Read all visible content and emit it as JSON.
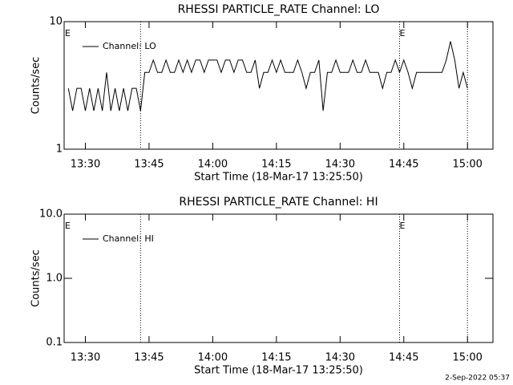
{
  "chart_data": [
    {
      "type": "line",
      "title": "RHESSI PARTICLE_RATE Channel: LO",
      "y_label": "Counts/sec",
      "x_label": "Start Time (18-Mar-17 13:25:50)",
      "log_y": true,
      "ylim": [
        1,
        10
      ],
      "yticks": [
        1,
        10
      ],
      "xlim": [
        "13:25",
        "15:06"
      ],
      "xticks": [
        "13:30",
        "13:45",
        "14:00",
        "14:15",
        "14:30",
        "14:45",
        "15:00"
      ],
      "vlines": [
        "13:43",
        "14:44",
        "15:00"
      ],
      "annotations": [
        {
          "text": "E",
          "x": "13:25"
        },
        {
          "text": "E",
          "x": "14:44"
        }
      ],
      "legend": "upper left",
      "x": [
        "13:26",
        "13:27",
        "13:28",
        "13:29",
        "13:30",
        "13:31",
        "13:32",
        "13:33",
        "13:34",
        "13:35",
        "13:36",
        "13:37",
        "13:38",
        "13:39",
        "13:40",
        "13:41",
        "13:42",
        "13:43",
        "13:44",
        "13:45",
        "13:46",
        "13:47",
        "13:48",
        "13:49",
        "13:50",
        "13:51",
        "13:52",
        "13:53",
        "13:54",
        "13:55",
        "13:56",
        "13:57",
        "13:58",
        "13:59",
        "14:00",
        "14:01",
        "14:02",
        "14:03",
        "14:04",
        "14:05",
        "14:06",
        "14:07",
        "14:08",
        "14:09",
        "14:10",
        "14:11",
        "14:12",
        "14:13",
        "14:14",
        "14:15",
        "14:16",
        "14:17",
        "14:18",
        "14:19",
        "14:20",
        "14:21",
        "14:22",
        "14:23",
        "14:24",
        "14:25",
        "14:26",
        "14:27",
        "14:28",
        "14:29",
        "14:30",
        "14:31",
        "14:32",
        "14:33",
        "14:34",
        "14:35",
        "14:36",
        "14:37",
        "14:38",
        "14:39",
        "14:40",
        "14:41",
        "14:42",
        "14:43",
        "14:44",
        "14:45",
        "14:46",
        "14:47",
        "14:48",
        "14:49",
        "14:50",
        "14:51",
        "14:52",
        "14:53",
        "14:54",
        "14:55",
        "14:56",
        "14:57",
        "14:58",
        "14:59",
        "15:00"
      ],
      "series": [
        {
          "name": "Channel: LO",
          "color": "#000000",
          "values": [
            3,
            2,
            3,
            3,
            2,
            3,
            2,
            3,
            2,
            4,
            2,
            3,
            2,
            3,
            2,
            3,
            3,
            2,
            4,
            4,
            5,
            4,
            4,
            5,
            4,
            4,
            5,
            4,
            5,
            4,
            5,
            5,
            4,
            5,
            5,
            5,
            4,
            5,
            5,
            4,
            5,
            5,
            4,
            4,
            5,
            3,
            4,
            4,
            5,
            4,
            5,
            4,
            4,
            4,
            5,
            4,
            3,
            4,
            4,
            5,
            2,
            4,
            4,
            5,
            4,
            4,
            4,
            5,
            4,
            4,
            5,
            4,
            4,
            4,
            3,
            4,
            4,
            5,
            4,
            5,
            4,
            3,
            4,
            4,
            4,
            4,
            4,
            4,
            4,
            5,
            7,
            5,
            3,
            4,
            3
          ]
        }
      ]
    },
    {
      "type": "line",
      "title": "RHESSI PARTICLE_RATE Channel: HI",
      "y_label": "Counts/sec",
      "x_label": "Start Time (18-Mar-17 13:25:50)",
      "log_y": true,
      "ylim": [
        0.1,
        10
      ],
      "yticks": [
        0.1,
        {
          "value": 1,
          "label": "1.0"
        },
        {
          "value": 10,
          "label": "10.0"
        }
      ],
      "xlim": [
        "13:25",
        "15:06"
      ],
      "xticks": [
        "13:30",
        "13:45",
        "14:00",
        "14:15",
        "14:30",
        "14:45",
        "15:00"
      ],
      "vlines": [
        "13:43",
        "14:44",
        "15:00"
      ],
      "annotations": [
        {
          "text": "E",
          "x": "13:25"
        },
        {
          "text": "E",
          "x": "14:44"
        }
      ],
      "legend": "upper left",
      "x": [],
      "series": [
        {
          "name": "Channel: HI",
          "color": "#000000",
          "values": []
        }
      ]
    }
  ],
  "footer": "2-Sep-2022 05:37"
}
